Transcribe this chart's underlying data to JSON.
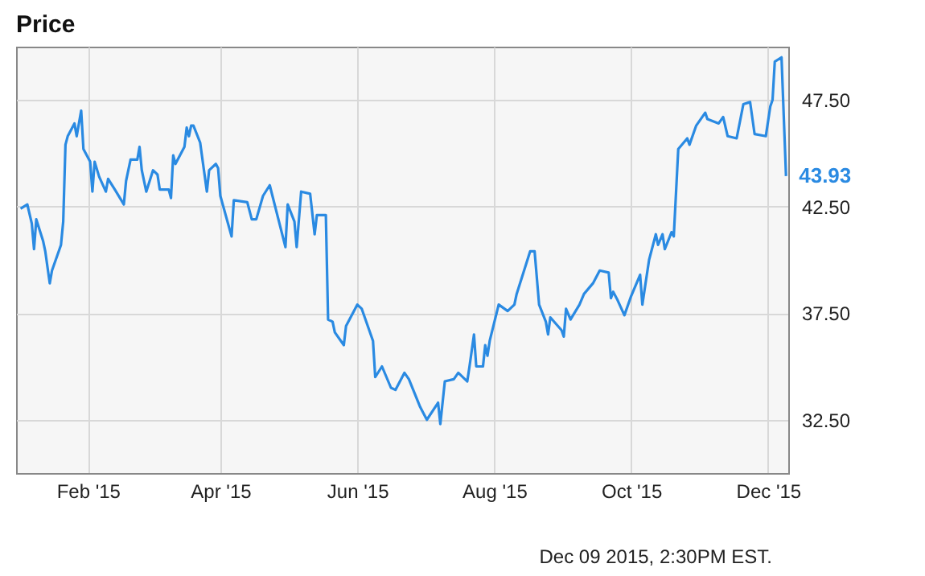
{
  "chart_data": {
    "type": "line",
    "title": "Price",
    "x": [
      "2015-01-02",
      "2015-01-05",
      "2015-01-07",
      "2015-01-08",
      "2015-01-09",
      "2015-01-12",
      "2015-01-13",
      "2015-01-15",
      "2015-01-16",
      "2015-01-20",
      "2015-01-21",
      "2015-01-22",
      "2015-01-23",
      "2015-01-26",
      "2015-01-27",
      "2015-01-29",
      "2015-01-30",
      "2015-02-02",
      "2015-02-03",
      "2015-02-04",
      "2015-02-06",
      "2015-02-09",
      "2015-02-10",
      "2015-02-13",
      "2015-02-17",
      "2015-02-18",
      "2015-02-20",
      "2015-02-23",
      "2015-02-24",
      "2015-02-25",
      "2015-02-27",
      "2015-03-02",
      "2015-03-04",
      "2015-03-05",
      "2015-03-09",
      "2015-03-10",
      "2015-03-11",
      "2015-03-12",
      "2015-03-16",
      "2015-03-17",
      "2015-03-18",
      "2015-03-19",
      "2015-03-20",
      "2015-03-23",
      "2015-03-26",
      "2015-03-27",
      "2015-03-30",
      "2015-03-31",
      "2015-04-01",
      "2015-04-06",
      "2015-04-07",
      "2015-04-13",
      "2015-04-15",
      "2015-04-17",
      "2015-04-20",
      "2015-04-23",
      "2015-04-30",
      "2015-05-01",
      "2015-05-04",
      "2015-05-05",
      "2015-05-07",
      "2015-05-11",
      "2015-05-13",
      "2015-05-14",
      "2015-05-18",
      "2015-05-19",
      "2015-05-21",
      "2015-05-22",
      "2015-05-26",
      "2015-05-27",
      "2015-06-01",
      "2015-06-03",
      "2015-06-08",
      "2015-06-09",
      "2015-06-12",
      "2015-06-16",
      "2015-06-18",
      "2015-06-22",
      "2015-06-24",
      "2015-06-29",
      "2015-07-02",
      "2015-07-07",
      "2015-07-08",
      "2015-07-10",
      "2015-07-14",
      "2015-07-16",
      "2015-07-20",
      "2015-07-21",
      "2015-07-23",
      "2015-07-24",
      "2015-07-27",
      "2015-07-28",
      "2015-07-29",
      "2015-07-30",
      "2015-08-03",
      "2015-08-07",
      "2015-08-10",
      "2015-08-11",
      "2015-08-17",
      "2015-08-19",
      "2015-08-21",
      "2015-08-24",
      "2015-08-25",
      "2015-08-26",
      "2015-08-31",
      "2015-09-01",
      "2015-09-02",
      "2015-09-04",
      "2015-09-08",
      "2015-09-10",
      "2015-09-14",
      "2015-09-17",
      "2015-09-21",
      "2015-09-22",
      "2015-09-23",
      "2015-09-25",
      "2015-09-28",
      "2015-10-01",
      "2015-10-05",
      "2015-10-06",
      "2015-10-07",
      "2015-10-09",
      "2015-10-12",
      "2015-10-13",
      "2015-10-15",
      "2015-10-16",
      "2015-10-19",
      "2015-10-20",
      "2015-10-22",
      "2015-10-26",
      "2015-10-27",
      "2015-10-30",
      "2015-11-03",
      "2015-11-04",
      "2015-11-09",
      "2015-11-11",
      "2015-11-13",
      "2015-11-17",
      "2015-11-20",
      "2015-11-23",
      "2015-11-25",
      "2015-11-30",
      "2015-12-02",
      "2015-12-03",
      "2015-12-04",
      "2015-12-07",
      "2015-12-09"
    ],
    "series": [
      {
        "color": "#2a8ae2",
        "values": [
          42.4,
          42.6,
          41.7,
          40.5,
          41.9,
          40.9,
          40.4,
          38.9,
          39.5,
          40.7,
          41.8,
          45.4,
          45.8,
          46.4,
          45.8,
          47.0,
          45.2,
          44.6,
          43.2,
          44.6,
          43.9,
          43.2,
          43.8,
          43.3,
          42.6,
          43.7,
          44.7,
          44.7,
          45.3,
          44.2,
          43.2,
          44.2,
          44.0,
          43.3,
          43.3,
          42.9,
          44.9,
          44.5,
          45.3,
          46.2,
          45.8,
          46.3,
          46.3,
          45.5,
          43.2,
          44.2,
          44.5,
          44.3,
          43.0,
          41.1,
          42.8,
          42.7,
          41.9,
          41.9,
          43.0,
          43.5,
          40.6,
          42.6,
          41.8,
          40.6,
          43.2,
          43.1,
          41.2,
          42.1,
          42.1,
          37.2,
          37.1,
          36.6,
          36.0,
          36.9,
          37.9,
          37.7,
          36.2,
          34.5,
          35.0,
          34.0,
          33.9,
          34.7,
          34.4,
          33.1,
          32.5,
          33.3,
          32.3,
          34.3,
          34.4,
          34.7,
          34.3,
          35.0,
          36.5,
          35.0,
          35.0,
          36.0,
          35.5,
          36.2,
          37.9,
          37.6,
          37.9,
          38.4,
          40.4,
          40.4,
          37.9,
          37.1,
          36.5,
          37.3,
          36.7,
          36.4,
          37.7,
          37.2,
          37.9,
          38.4,
          38.9,
          39.5,
          39.4,
          38.2,
          38.5,
          38.1,
          37.4,
          38.3,
          39.3,
          37.9,
          38.6,
          40.0,
          41.2,
          40.7,
          41.2,
          40.5,
          41.3,
          41.1,
          45.2,
          45.7,
          45.4,
          46.3,
          46.9,
          46.6,
          46.4,
          46.7,
          45.8,
          45.7,
          47.3,
          47.4,
          45.9,
          45.8,
          47.2,
          47.5,
          49.3,
          49.5,
          43.93
        ],
        "value_labels": [
          null,
          null,
          null,
          null,
          null,
          null,
          null,
          null,
          null,
          null,
          null,
          null,
          null,
          null,
          null,
          null,
          null,
          null,
          null,
          null,
          null,
          null,
          null,
          null,
          null,
          null,
          null,
          null,
          null,
          null,
          null,
          null,
          null,
          null,
          null,
          null,
          null,
          null,
          null,
          null,
          null,
          null,
          null,
          null,
          null,
          null,
          null,
          null,
          null,
          null,
          null,
          null,
          null,
          null,
          null,
          null,
          null,
          null,
          null,
          null,
          null,
          null,
          null,
          null,
          null,
          null,
          null,
          null,
          null,
          null,
          null,
          null,
          null,
          null,
          null,
          null,
          null,
          null,
          null,
          null,
          null,
          null,
          null,
          null,
          null,
          null,
          null,
          null,
          null,
          null,
          null,
          null,
          null,
          null,
          null,
          null,
          null,
          null,
          null,
          null,
          null,
          null,
          null,
          null,
          null,
          null,
          null,
          null,
          null,
          null,
          null,
          null,
          null,
          null,
          null,
          null,
          null,
          null,
          null,
          null,
          null,
          null,
          null,
          null,
          null,
          null,
          null,
          null,
          null,
          null,
          null,
          null,
          null,
          null,
          null,
          null,
          null,
          null,
          null,
          null,
          null,
          null,
          null,
          null,
          null,
          null,
          "43.93"
        ]
      }
    ],
    "xlim": [
      "2014-12-31",
      "2015-12-10"
    ],
    "xticks": [
      {
        "value": "2015-02-01",
        "label": "Feb '15"
      },
      {
        "value": "2015-04-01",
        "label": "Apr '15"
      },
      {
        "value": "2015-06-01",
        "label": "Jun '15"
      },
      {
        "value": "2015-08-01",
        "label": "Aug '15"
      },
      {
        "value": "2015-10-01",
        "label": "Oct '15"
      },
      {
        "value": "2015-12-01",
        "label": "Dec '15"
      }
    ],
    "ylim": [
      30,
      50
    ],
    "yticks": [
      {
        "value": 32.5,
        "label": "32.50"
      },
      {
        "value": 37.5,
        "label": "37.50"
      },
      {
        "value": 42.5,
        "label": "42.50"
      },
      {
        "value": 47.5,
        "label": "47.50"
      }
    ],
    "grid": true,
    "marker": "none",
    "line_style": "solid",
    "annotations": [
      "Dec 09 2015, 2:30PM EST."
    ]
  }
}
